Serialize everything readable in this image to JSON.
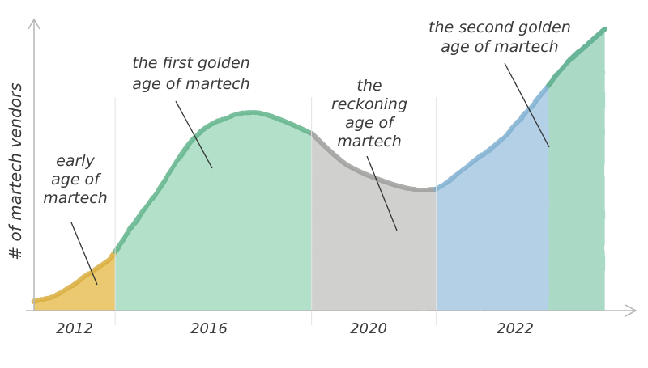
{
  "chart_data": {
    "type": "area",
    "title": "",
    "xlabel": "",
    "ylabel": "# of martech vendors",
    "x_ticks": [
      "2012",
      "2016",
      "2020",
      "2022"
    ],
    "grid": false,
    "legend": "none",
    "series": [
      {
        "label": "early age of martech",
        "label_lines": [
          "early",
          "age of",
          "martech"
        ],
        "color": "#e8c25c",
        "edge_color": "#d9ae3e",
        "points": [
          [
            0.0,
            0.03
          ],
          [
            0.4,
            0.06
          ],
          [
            0.8,
            0.12
          ],
          [
            1.2,
            0.18
          ],
          [
            1.3,
            0.21
          ]
        ]
      },
      {
        "label": "the first golden age of martech",
        "label_lines": [
          "the first golden",
          "age of martech"
        ],
        "color": "#a9dcc0",
        "edge_color": "#63b48c",
        "points": [
          [
            1.3,
            0.21
          ],
          [
            2.0,
            0.43
          ],
          [
            2.6,
            0.62
          ],
          [
            3.3,
            0.7
          ],
          [
            3.8,
            0.69
          ],
          [
            4.45,
            0.63
          ]
        ]
      },
      {
        "label": "the reckoning age of martech",
        "label_lines": [
          "the",
          "reckoning",
          "age of",
          "martech"
        ],
        "color": "#c9c9c7",
        "edge_color": "#9d9d9b",
        "points": [
          [
            4.45,
            0.63
          ],
          [
            5.0,
            0.52
          ],
          [
            5.6,
            0.46
          ],
          [
            6.1,
            0.43
          ],
          [
            6.45,
            0.43
          ]
        ]
      },
      {
        "label": "the second golden age of martech",
        "label_lines": [
          "the second golden",
          "age of martech"
        ],
        "color": "#a9c9e2",
        "edge_color": "#7fb0d0",
        "points": [
          [
            6.45,
            0.43
          ],
          [
            7.0,
            0.52
          ],
          [
            7.6,
            0.63
          ],
          [
            8.25,
            0.8
          ],
          [
            8.6,
            0.89
          ],
          [
            9.15,
            1.0
          ]
        ]
      }
    ],
    "overlay": {
      "color": "#a9dcc0",
      "edge_color": "#63b48c",
      "points": [
        [
          8.25,
          0.8
        ],
        [
          8.6,
          0.89
        ],
        [
          9.15,
          1.0
        ]
      ]
    }
  }
}
